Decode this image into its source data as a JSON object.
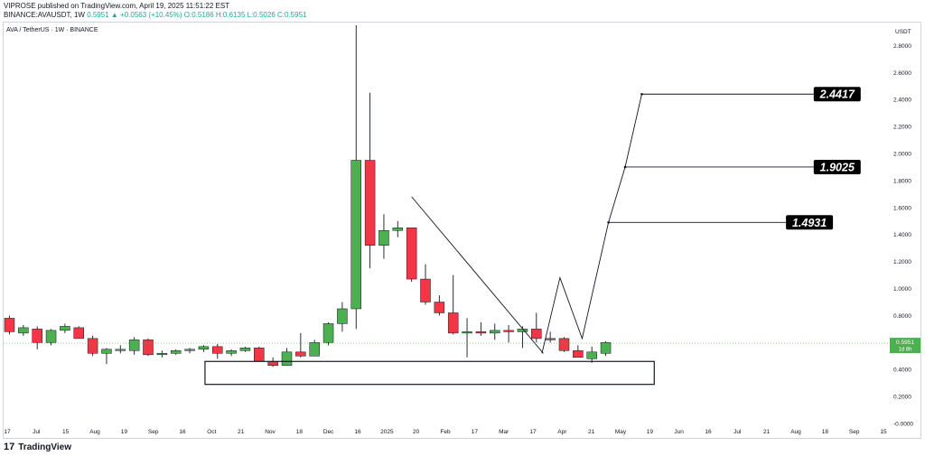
{
  "header": {
    "line1": "VIPROSE published on TradingView.com, April 19, 2025 11:51:22 EST",
    "symbol": "BINANCE:AVAUSDT, 1W",
    "price": "0.5951",
    "change": "▲ +0.0563 (+10.45%)",
    "open": "O:0.5186",
    "high": "H:0.6135",
    "low": "L:0.5026",
    "close": "C:0.5951"
  },
  "footer": {
    "logo_mark": "17",
    "logo_text": "TradingView"
  },
  "colors": {
    "up": "#4caf50",
    "down": "#f23645",
    "line": "#131722",
    "label_bg": "#000000",
    "price_tag": "#4caf50"
  },
  "chart_data": {
    "type": "candlestick",
    "title": "AVA / TetherUS · 1W · BINANCE",
    "currency": "USDT",
    "ylim": [
      -0.1,
      2.95
    ],
    "y_ticks": [
      "2.8000",
      "2.6000",
      "2.4000",
      "2.2000",
      "2.0000",
      "1.8000",
      "1.6000",
      "1.4000",
      "1.2000",
      "1.0000",
      "0.8000",
      "0.6000",
      "0.4000",
      "0.2000",
      "-0.0000"
    ],
    "x_ticks": [
      "17",
      "Jul",
      "15",
      "Aug",
      "19",
      "Sep",
      "16",
      "Oct",
      "21",
      "Nov",
      "18",
      "Dec",
      "16",
      "2025",
      "20",
      "Feb",
      "17",
      "Mar",
      "17",
      "Apr",
      "21",
      "May",
      "19",
      "Jun",
      "16",
      "Jul",
      "21",
      "Aug",
      "18",
      "Sep",
      "15"
    ],
    "candles": [
      {
        "o": 0.78,
        "h": 0.8,
        "l": 0.66,
        "c": 0.68
      },
      {
        "o": 0.67,
        "h": 0.73,
        "l": 0.65,
        "c": 0.71
      },
      {
        "o": 0.7,
        "h": 0.72,
        "l": 0.55,
        "c": 0.6
      },
      {
        "o": 0.6,
        "h": 0.7,
        "l": 0.58,
        "c": 0.69
      },
      {
        "o": 0.69,
        "h": 0.74,
        "l": 0.67,
        "c": 0.72
      },
      {
        "o": 0.71,
        "h": 0.72,
        "l": 0.63,
        "c": 0.63
      },
      {
        "o": 0.63,
        "h": 0.65,
        "l": 0.5,
        "c": 0.52
      },
      {
        "o": 0.52,
        "h": 0.56,
        "l": 0.44,
        "c": 0.55
      },
      {
        "o": 0.54,
        "h": 0.58,
        "l": 0.52,
        "c": 0.55
      },
      {
        "o": 0.54,
        "h": 0.64,
        "l": 0.51,
        "c": 0.62
      },
      {
        "o": 0.62,
        "h": 0.63,
        "l": 0.5,
        "c": 0.51
      },
      {
        "o": 0.51,
        "h": 0.54,
        "l": 0.49,
        "c": 0.52
      },
      {
        "o": 0.52,
        "h": 0.55,
        "l": 0.51,
        "c": 0.54
      },
      {
        "o": 0.54,
        "h": 0.56,
        "l": 0.52,
        "c": 0.55
      },
      {
        "o": 0.55,
        "h": 0.58,
        "l": 0.53,
        "c": 0.57
      },
      {
        "o": 0.57,
        "h": 0.59,
        "l": 0.48,
        "c": 0.52
      },
      {
        "o": 0.52,
        "h": 0.55,
        "l": 0.5,
        "c": 0.54
      },
      {
        "o": 0.54,
        "h": 0.57,
        "l": 0.53,
        "c": 0.56
      },
      {
        "o": 0.56,
        "h": 0.57,
        "l": 0.46,
        "c": 0.46
      },
      {
        "o": 0.46,
        "h": 0.49,
        "l": 0.42,
        "c": 0.43
      },
      {
        "o": 0.43,
        "h": 0.56,
        "l": 0.43,
        "c": 0.53
      },
      {
        "o": 0.53,
        "h": 0.67,
        "l": 0.49,
        "c": 0.5
      },
      {
        "o": 0.5,
        "h": 0.62,
        "l": 0.5,
        "c": 0.6
      },
      {
        "o": 0.6,
        "h": 0.75,
        "l": 0.58,
        "c": 0.74
      },
      {
        "o": 0.74,
        "h": 0.9,
        "l": 0.68,
        "c": 0.85
      },
      {
        "o": 0.85,
        "h": 2.95,
        "l": 0.7,
        "c": 1.95
      },
      {
        "o": 1.95,
        "h": 2.45,
        "l": 1.15,
        "c": 1.32
      },
      {
        "o": 1.32,
        "h": 1.55,
        "l": 1.22,
        "c": 1.43
      },
      {
        "o": 1.43,
        "h": 1.5,
        "l": 1.38,
        "c": 1.45
      },
      {
        "o": 1.45,
        "h": 1.45,
        "l": 1.05,
        "c": 1.07
      },
      {
        "o": 1.07,
        "h": 1.18,
        "l": 0.88,
        "c": 0.9
      },
      {
        "o": 0.9,
        "h": 0.95,
        "l": 0.8,
        "c": 0.82
      },
      {
        "o": 0.82,
        "h": 1.1,
        "l": 0.66,
        "c": 0.67
      },
      {
        "o": 0.67,
        "h": 0.78,
        "l": 0.49,
        "c": 0.68
      },
      {
        "o": 0.68,
        "h": 0.75,
        "l": 0.65,
        "c": 0.67
      },
      {
        "o": 0.67,
        "h": 0.74,
        "l": 0.62,
        "c": 0.69
      },
      {
        "o": 0.69,
        "h": 0.73,
        "l": 0.6,
        "c": 0.68
      },
      {
        "o": 0.68,
        "h": 0.72,
        "l": 0.56,
        "c": 0.7
      },
      {
        "o": 0.7,
        "h": 0.82,
        "l": 0.6,
        "c": 0.63
      },
      {
        "o": 0.63,
        "h": 0.68,
        "l": 0.6,
        "c": 0.62
      },
      {
        "o": 0.63,
        "h": 0.64,
        "l": 0.53,
        "c": 0.54
      },
      {
        "o": 0.54,
        "h": 0.58,
        "l": 0.49,
        "c": 0.49
      },
      {
        "o": 0.48,
        "h": 0.57,
        "l": 0.45,
        "c": 0.53
      },
      {
        "o": 0.52,
        "h": 0.61,
        "l": 0.5,
        "c": 0.6
      }
    ],
    "support_box": {
      "x0": 14.1,
      "x1": 46.5,
      "y_top": 0.46,
      "y_bottom": 0.29
    },
    "downtrend_line": [
      [
        29.0,
        1.68
      ],
      [
        38.5,
        0.52
      ]
    ],
    "projection_path": [
      [
        38.4,
        0.52
      ],
      [
        39.7,
        1.08
      ],
      [
        41.3,
        0.63
      ],
      [
        43.2,
        1.49
      ],
      [
        44.4,
        1.9
      ],
      [
        45.6,
        2.44
      ]
    ],
    "targets": [
      {
        "label": "2.4417",
        "from_x": 45.6,
        "value": 2.44,
        "label_x": 58.0
      },
      {
        "label": "1.9025",
        "from_x": 44.4,
        "value": 1.9,
        "label_x": 58.0
      },
      {
        "label": "1.4931",
        "from_x": 43.2,
        "value": 1.49,
        "label_x": 56.0
      }
    ],
    "current_price": {
      "value": 0.595,
      "label": "0.5951",
      "countdown": "1d 8h"
    }
  }
}
